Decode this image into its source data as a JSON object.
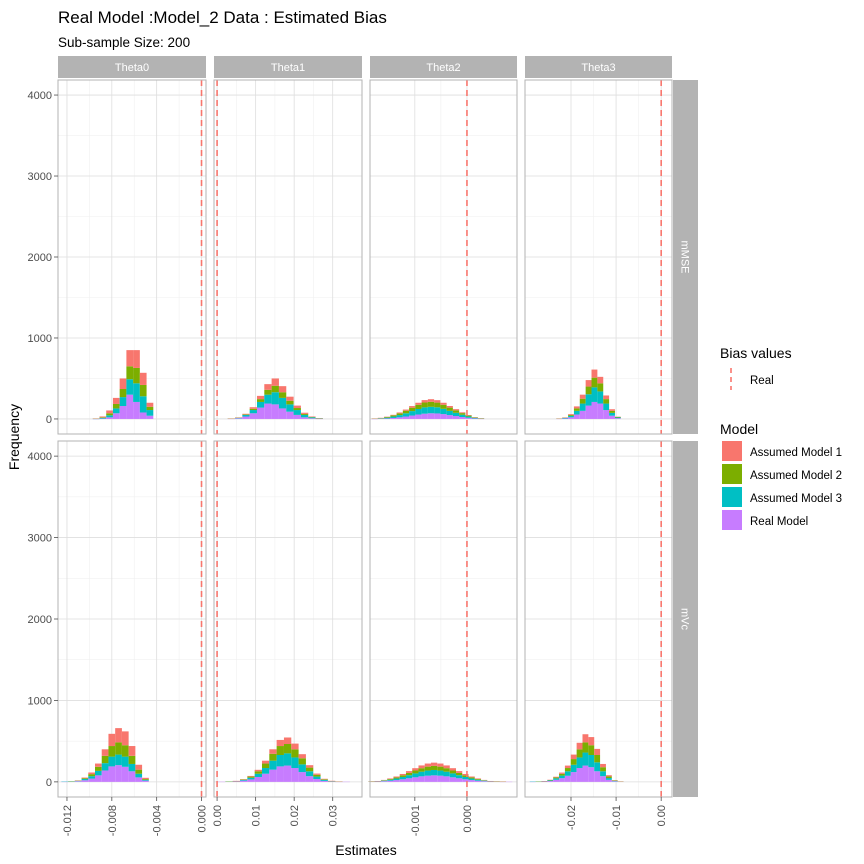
{
  "chart_data": {
    "type": "histogram",
    "title": "Real Model :Model_2 Data : Estimated Bias",
    "subtitle": "Sub-sample Size: 200",
    "xlabel": "Estimates",
    "ylabel": "Frequency",
    "ylim": [
      0,
      4000
    ],
    "y_ticks": [
      0,
      1000,
      2000,
      3000,
      4000
    ],
    "column_strips": [
      "Theta0",
      "Theta1",
      "Theta2",
      "Theta3"
    ],
    "row_strips": [
      "mMSE",
      "mVc"
    ],
    "columns": [
      {
        "xlim": [
          -0.0128,
          0.0004
        ],
        "ticks": [
          -0.012,
          -0.008,
          -0.004,
          0.0
        ],
        "tick_labels": [
          "-0.012",
          "-0.008",
          "-0.004",
          "0.000"
        ],
        "real_value": 0.0
      },
      {
        "xlim": [
          -0.0008,
          0.0376
        ],
        "ticks": [
          0.0,
          0.01,
          0.02,
          0.03
        ],
        "tick_labels": [
          "0.00",
          "0.01",
          "0.02",
          "0.03"
        ],
        "real_value": 0.0
      },
      {
        "xlim": [
          -0.00186,
          0.00096
        ],
        "ticks": [
          -0.001,
          0.0
        ],
        "tick_labels": [
          "-0.001",
          "0.000"
        ],
        "real_value": 0.0
      },
      {
        "xlim": [
          -0.0302,
          0.0024
        ],
        "ticks": [
          -0.02,
          -0.01,
          0.0
        ],
        "tick_labels": [
          "-0.02",
          "-0.01",
          "0.00"
        ],
        "real_value": 0.0
      }
    ],
    "legend": {
      "bias_title": "Bias values",
      "bias_entry": "Real",
      "model_title": "Model",
      "models": [
        "Assumed Model 1",
        "Assumed Model 2",
        "Assumed Model 3",
        "Real Model"
      ],
      "colors": [
        "#F8766D",
        "#7CAE00",
        "#00BFC4",
        "#C77CFF"
      ],
      "line_color": "#F8766D",
      "position": "right"
    },
    "stack_order_bottom_to_top": [
      "Real Model",
      "Assumed Model 3",
      "Assumed Model 2",
      "Assumed Model 1"
    ],
    "panels": {
      "mMSE": [
        {
          "x": [
            -0.0094,
            -0.0088,
            -0.0082,
            -0.0076,
            -0.007,
            -0.0064,
            -0.0058,
            -0.0052,
            -0.0046
          ],
          "series": [
            [
              2,
              10,
              35,
              75,
              130,
              200,
              220,
              150,
              50
            ],
            [
              2,
              8,
              25,
              55,
              100,
              160,
              190,
              140,
              40
            ],
            [
              1,
              8,
              25,
              60,
              110,
              190,
              230,
              200,
              70
            ],
            [
              1,
              5,
              20,
              70,
              160,
              300,
              210,
              80,
              40
            ]
          ]
        },
        {
          "x": [
            0.0037,
            0.0056,
            0.0075,
            0.0094,
            0.0113,
            0.0132,
            0.0151,
            0.017,
            0.0189,
            0.0208,
            0.0227,
            0.0246,
            0.0265
          ],
          "series": [
            [
              1,
              3,
              8,
              20,
              40,
              70,
              90,
              75,
              50,
              30,
              15,
              6,
              2
            ],
            [
              1,
              2,
              6,
              15,
              35,
              60,
              80,
              70,
              45,
              25,
              12,
              5,
              2
            ],
            [
              2,
              6,
              20,
              40,
              70,
              110,
              150,
              130,
              90,
              60,
              30,
              12,
              4
            ],
            [
              2,
              8,
              30,
              70,
              140,
              190,
              180,
              130,
              90,
              50,
              20,
              8,
              2
            ]
          ]
        },
        {
          "x": [
            -0.00177,
            -0.00165,
            -0.00153,
            -0.00141,
            -0.00129,
            -0.00117,
            -0.00105,
            -0.00093,
            -0.00081,
            -0.00069,
            -0.00057,
            -0.00045,
            -0.00033,
            -0.00021,
            -9e-05,
            3e-05,
            0.00015,
            0.00027
          ],
          "series": [
            [
              1,
              2,
              4,
              6,
              10,
              14,
              20,
              25,
              30,
              32,
              30,
              25,
              20,
              15,
              10,
              6,
              3,
              1
            ],
            [
              2,
              4,
              8,
              15,
              22,
              32,
              42,
              52,
              60,
              62,
              58,
              50,
              40,
              30,
              20,
              12,
              6,
              2
            ],
            [
              2,
              5,
              10,
              18,
              28,
              40,
              55,
              68,
              78,
              80,
              76,
              65,
              52,
              40,
              28,
              16,
              8,
              3
            ],
            [
              1,
              3,
              6,
              12,
              20,
              30,
              42,
              55,
              65,
              70,
              68,
              60,
              48,
              36,
              24,
              14,
              6,
              2
            ]
          ]
        },
        {
          "x": [
            -0.0226,
            -0.0213,
            -0.02,
            -0.0187,
            -0.0174,
            -0.0161,
            -0.0148,
            -0.0135,
            -0.0122,
            -0.0109,
            -0.0096
          ],
          "series": [
            [
              1,
              3,
              10,
              25,
              50,
              80,
              100,
              80,
              45,
              20,
              4
            ],
            [
              1,
              4,
              12,
              30,
              60,
              95,
              120,
              100,
              55,
              25,
              6
            ],
            [
              2,
              6,
              18,
              45,
              90,
              140,
              180,
              150,
              80,
              35,
              8
            ],
            [
              2,
              6,
              20,
              55,
              100,
              165,
              210,
              190,
              110,
              40,
              10
            ]
          ]
        }
      ],
      "mVc": [
        {
          "x": [
            -0.0122,
            -0.0116,
            -0.011,
            -0.0104,
            -0.0098,
            -0.0092,
            -0.0086,
            -0.008,
            -0.0074,
            -0.0068,
            -0.0062,
            -0.0056,
            -0.005
          ],
          "series": [
            [
              0,
              0,
              2,
              8,
              20,
              40,
              80,
              150,
              175,
              170,
              120,
              60,
              15
            ],
            [
              0,
              1,
              3,
              10,
              25,
              50,
              90,
              130,
              150,
              140,
              100,
              50,
              10
            ],
            [
              1,
              2,
              5,
              15,
              30,
              55,
              90,
              120,
              130,
              125,
              90,
              45,
              10
            ],
            [
              1,
              3,
              8,
              20,
              40,
              80,
              140,
              190,
              205,
              185,
              130,
              55,
              15
            ]
          ]
        },
        {
          "x": [
            0.0012,
            0.0031,
            0.005,
            0.0069,
            0.0088,
            0.0107,
            0.0126,
            0.0145,
            0.0164,
            0.0183,
            0.0202,
            0.0221,
            0.024,
            0.0259,
            0.0278,
            0.0297,
            0.0316,
            0.0335
          ],
          "series": [
            [
              0,
              0,
              1,
              3,
              8,
              18,
              35,
              55,
              75,
              80,
              70,
              50,
              30,
              15,
              6,
              2,
              1,
              0
            ],
            [
              0,
              1,
              2,
              6,
              15,
              30,
              55,
              85,
              110,
              115,
              100,
              75,
              45,
              22,
              8,
              3,
              1,
              0
            ],
            [
              0,
              1,
              3,
              8,
              20,
              40,
              70,
              110,
              140,
              150,
              130,
              95,
              60,
              30,
              12,
              4,
              1,
              0
            ],
            [
              1,
              2,
              6,
              15,
              30,
              60,
              100,
              150,
              190,
              200,
              170,
              120,
              70,
              35,
              12,
              4,
              1,
              1
            ]
          ]
        },
        {
          "x": [
            -0.00183,
            -0.00171,
            -0.00159,
            -0.00147,
            -0.00135,
            -0.00123,
            -0.00111,
            -0.00099,
            -0.00087,
            -0.00075,
            -0.00063,
            -0.00051,
            -0.00039,
            -0.00027,
            -0.00015,
            -3e-05,
            9e-05,
            0.00021,
            0.00033,
            0.00045,
            0.00057,
            0.00069,
            0.00081
          ],
          "series": [
            [
              1,
              2,
              4,
              7,
              11,
              16,
              22,
              28,
              34,
              38,
              40,
              38,
              34,
              28,
              22,
              16,
              11,
              7,
              4,
              2,
              1,
              1,
              0
            ],
            [
              1,
              2,
              5,
              9,
              14,
              21,
              28,
              36,
              43,
              48,
              50,
              48,
              43,
              36,
              28,
              21,
              14,
              9,
              5,
              2,
              1,
              1,
              0
            ],
            [
              2,
              3,
              7,
              12,
              19,
              28,
              38,
              48,
              57,
              63,
              66,
              63,
              57,
              48,
              38,
              28,
              19,
              12,
              7,
              3,
              2,
              1,
              0
            ],
            [
              2,
              4,
              8,
              14,
              22,
              32,
              44,
              56,
              68,
              76,
              80,
              76,
              68,
              56,
              44,
              32,
              22,
              14,
              8,
              4,
              2,
              1,
              1
            ]
          ]
        },
        {
          "x": [
            -0.0285,
            -0.0272,
            -0.0259,
            -0.0246,
            -0.0233,
            -0.022,
            -0.0207,
            -0.0194,
            -0.0181,
            -0.0168,
            -0.0155,
            -0.0142,
            -0.0129,
            -0.0116,
            -0.0103,
            -0.009
          ],
          "series": [
            [
              0,
              0,
              1,
              3,
              8,
              15,
              30,
              55,
              80,
              100,
              100,
              75,
              40,
              15,
              4,
              1
            ],
            [
              0,
              1,
              2,
              5,
              12,
              22,
              40,
              70,
              100,
              125,
              120,
              90,
              50,
              20,
              5,
              1
            ],
            [
              1,
              1,
              3,
              8,
              18,
              32,
              55,
              90,
              130,
              160,
              150,
              110,
              60,
              22,
              6,
              1
            ],
            [
              1,
              2,
              4,
              10,
              25,
              45,
              75,
              120,
              170,
              200,
              180,
              130,
              70,
              25,
              7,
              2
            ]
          ]
        }
      ]
    }
  }
}
